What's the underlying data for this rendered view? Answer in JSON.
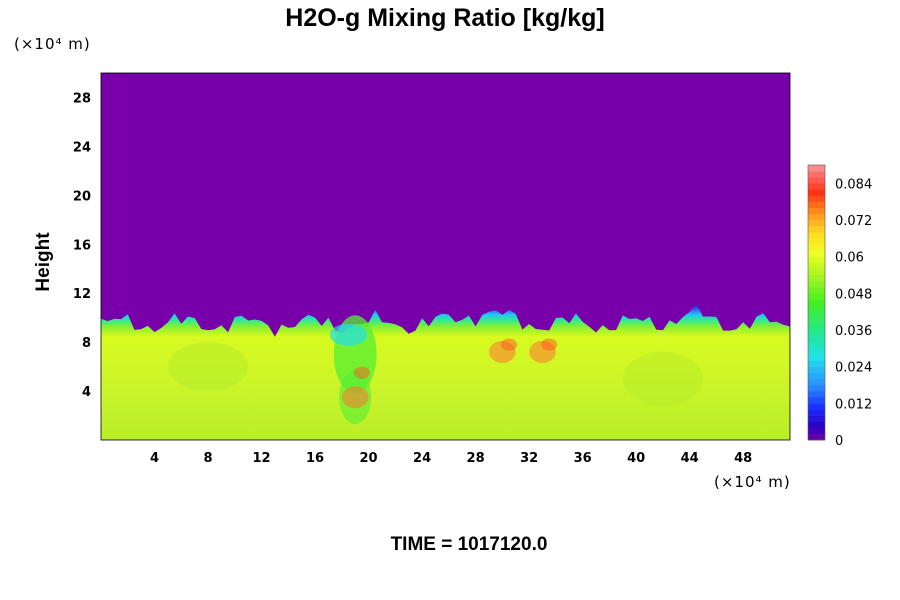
{
  "chart_data": {
    "type": "heatmap",
    "title": "H2O-g Mixing Ratio [kg/kg]",
    "xlabel": "",
    "ylabel": "Height",
    "x_unit_label": "(×10⁴ m)",
    "y_unit_label": "(×10⁴ m)",
    "xlim": [
      0,
      51.5
    ],
    "ylim": [
      0,
      30
    ],
    "x_ticks": [
      "4",
      "8",
      "12",
      "16",
      "20",
      "24",
      "28",
      "32",
      "36",
      "40",
      "44",
      "48"
    ],
    "x_tick_values": [
      4,
      8,
      12,
      16,
      20,
      24,
      28,
      32,
      36,
      40,
      44,
      48
    ],
    "y_ticks": [
      "4",
      "8",
      "12",
      "16",
      "20",
      "24",
      "28"
    ],
    "y_tick_values": [
      4,
      8,
      12,
      16,
      20,
      24,
      28
    ],
    "colorbar": {
      "range": [
        0,
        0.09
      ],
      "tick_labels": [
        "0",
        "0.012",
        "0.024",
        "0.036",
        "0.048",
        "0.06",
        "0.072",
        "0.084"
      ],
      "tick_values": [
        0,
        0.012,
        0.024,
        0.036,
        0.048,
        0.06,
        0.072,
        0.084
      ]
    },
    "field_summary": {
      "upper_region_value": 0,
      "boundary_height_approx": 9.5,
      "lower_region_value_approx": 0.058,
      "local_maxima_x": [
        19,
        30,
        33
      ],
      "local_maxima_value_approx": 0.07
    },
    "colors": {
      "upper": "#7700aa",
      "boundary_dark": "#1a10c8",
      "boundary_light": "#33aaff",
      "cyan": "#22e0ea",
      "green": "#55ee33",
      "lower": "#ddff22",
      "peak": "#ff7733"
    }
  },
  "footer": {
    "time_label": "TIME = 1017120.0"
  }
}
